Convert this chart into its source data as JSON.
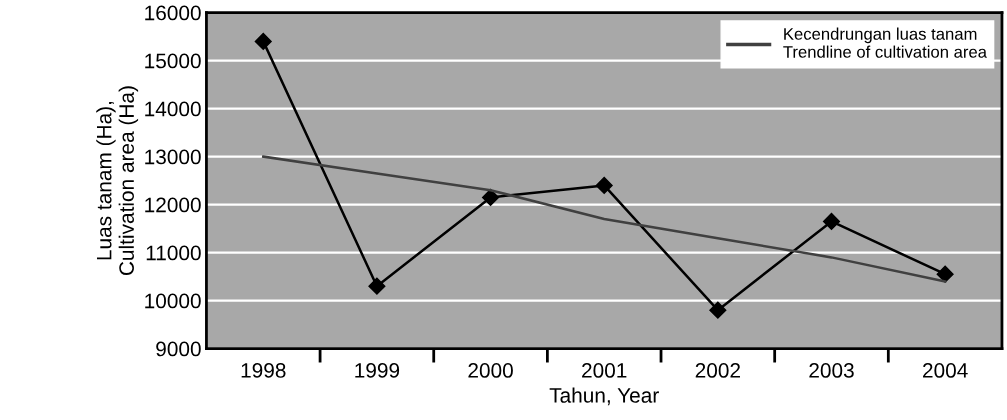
{
  "chart_data": {
    "type": "line",
    "categories": [
      "1998",
      "1999",
      "2000",
      "2001",
      "2002",
      "2003",
      "2004"
    ],
    "series": [
      {
        "color": "#000000",
        "values": [
          15400,
          10300,
          12150,
          12400,
          9800,
          11650,
          10550
        ],
        "marker": "diamond"
      },
      {
        "name": "Kecendrungan luas tanam\nTrendline of cultivation area",
        "color": "#404040",
        "values": [
          13000,
          12650,
          12300,
          11700,
          11300,
          10900,
          10400
        ],
        "marker": "none"
      }
    ],
    "ylabel": "Luas tanam (Ha),\nCultivation area (Ha)",
    "xlabel": "Tahun, Year",
    "ylim": [
      9000,
      16000
    ],
    "yticks": [
      9000,
      10000,
      11000,
      12000,
      13000,
      14000,
      15000,
      16000
    ],
    "grid": "y",
    "legend": "top right",
    "line_style": "solid"
  }
}
